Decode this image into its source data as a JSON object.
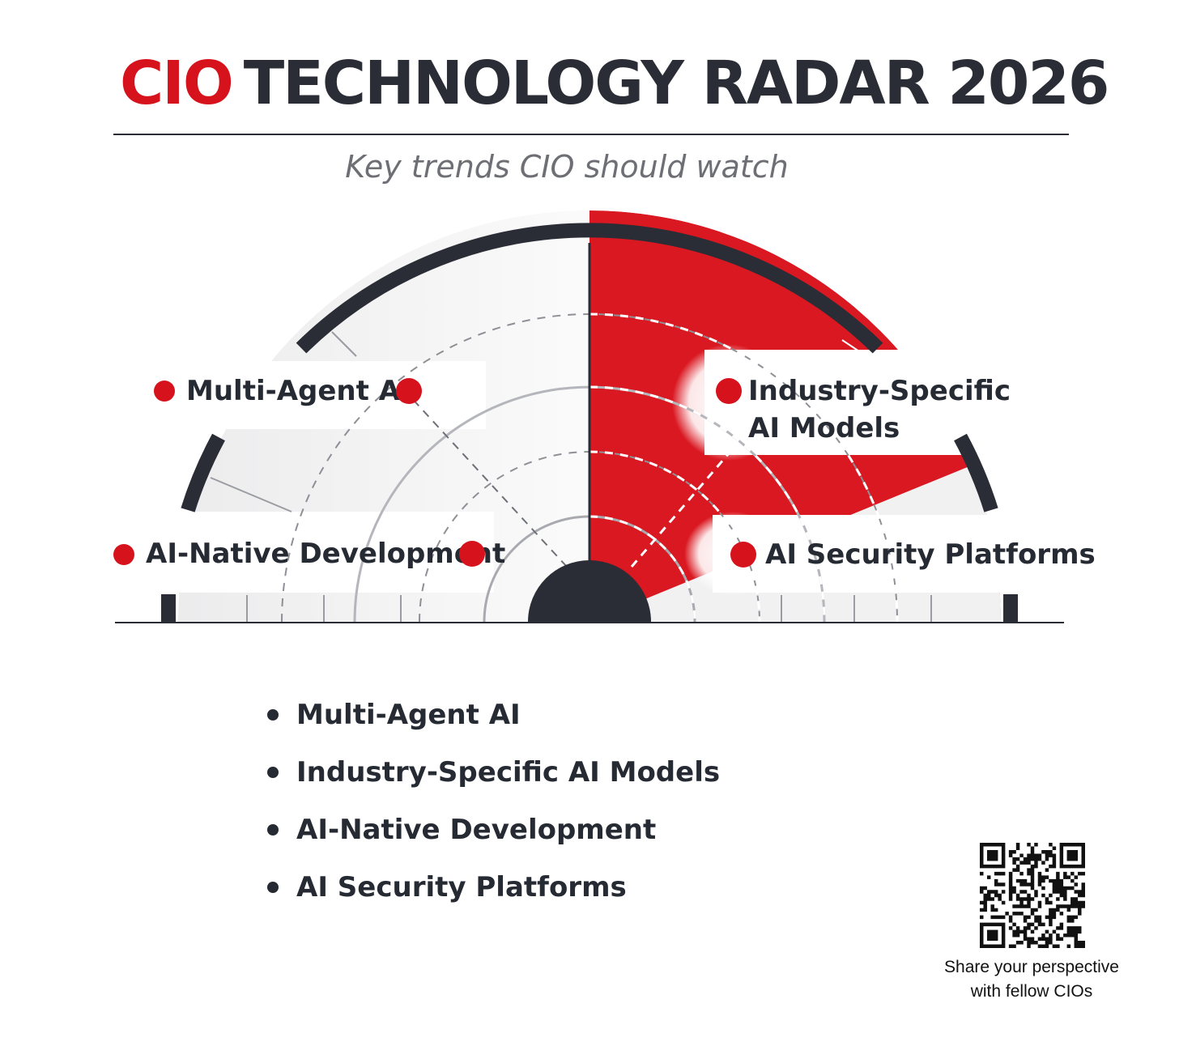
{
  "header": {
    "title_brand": "CIO",
    "title_rest": "TECHNOLOGY RADAR 2026",
    "subtitle": "Key trends CIO should watch"
  },
  "radar": {
    "labels": [
      {
        "id": "multi-agent-ai",
        "text": "Multi-Agent AI"
      },
      {
        "id": "industry-specific-ai-models",
        "line1": "Industry-Specific",
        "line2": "AI Models"
      },
      {
        "id": "ai-native-development",
        "text": "AI-Native Development"
      },
      {
        "id": "ai-security-platforms",
        "text": "AI Security Platforms"
      }
    ]
  },
  "trends": [
    "Multi-Agent AI",
    "Industry-Specific AI Models",
    "AI-Native Development",
    "AI Security Platforms"
  ],
  "qr": {
    "caption_line1": "Share your perspective",
    "caption_line2": "with fellow CIOs"
  },
  "colors": {
    "accent": "#d6131d",
    "dark": "#2a2d35",
    "subtitle": "#6d6f74"
  }
}
